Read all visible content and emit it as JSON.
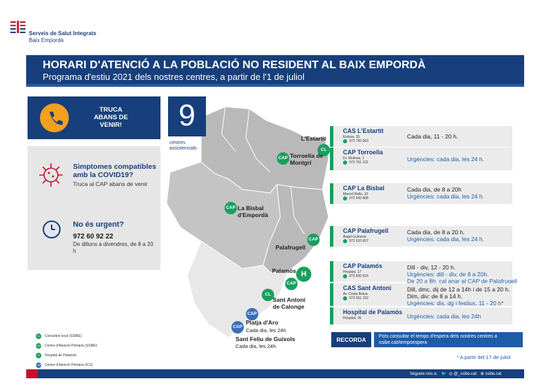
{
  "logo": {
    "line1": "Serveis de Salut Integrats",
    "line2": "Baix Empordà"
  },
  "header": {
    "title": "HORARI D'ATENCIÓ A LA POBLACIÓ NO RESIDENT AL BAIX EMPORDÀ",
    "subtitle": "Programa d'estiu 2021 dels nostres centres, a partir de l'1 de juliol"
  },
  "call": {
    "text": "TRUCA ABANS DE VENIR!"
  },
  "covid": {
    "title": "Simptomes compatibles amb la COVID19?",
    "subtitle": "Truca al CAP abans de venir"
  },
  "urgent": {
    "title": "No és urgent?",
    "phone": "972 60 92 22",
    "hours": "De dilluns a divendres, de 8 a 20 h"
  },
  "counter": {
    "number": "9",
    "label": "centres assistencials"
  },
  "map": {
    "labels": {
      "estartit": "L'Estartit",
      "torroella": "Torroella de Montgrí",
      "bisbal": "La Bisbal d'Empordà",
      "palafrugell": "Palafrugell",
      "palamos": "Palamós",
      "santantoni": "Sant Antoni de Calonge",
      "platja": "Platja d'Aro",
      "platja_hours": "Cada dia, les 24h",
      "guixols": "Sant Feliu de Guíxols",
      "guixols_hours": "Cada dia, les 24h"
    },
    "pins": {
      "cap": "CAP",
      "cl": "CL",
      "h": "H"
    }
  },
  "legend": [
    {
      "code": "CL",
      "label": "Consultori local (SSIBE)",
      "color": "#17a05d"
    },
    {
      "code": "CAP",
      "label": "Centre d'Atenció Primària (SSIBE)",
      "color": "#17a05d"
    },
    {
      "code": "H",
      "label": "Hospital de Palamós",
      "color": "#17a05d"
    },
    {
      "code": "CAP",
      "label": "Centre d'Atenció Primària (ICS)",
      "color": "#3a6fb7"
    }
  ],
  "centers": [
    {
      "name": "CAS L'Estartit",
      "address": "Eivissa, 35",
      "phone": "972 750 063",
      "hours": [
        "Cada dia, 11 - 20 h."
      ],
      "urg": []
    },
    {
      "name": "CAP Torroella",
      "address": "Dr. Molinas, 1",
      "phone": "972 761 101",
      "hours": [],
      "urg": [
        "Urgències: cada dia, les 24 h."
      ]
    },
    {
      "name": "CAP La Bisbal",
      "address": "Marcel Rallo, 10",
      "phone": "972 643 808",
      "hours": [
        "Cada dia, de 8 a 20h"
      ],
      "urg": [
        "Urgències: cada dia, les 24 h."
      ]
    },
    {
      "name": "CAP Palafrugell",
      "address": "Àngel Guimerà",
      "phone": "972 610 607",
      "hours": [
        "Cada dia, de 8 a 20 h."
      ],
      "urg": [
        "Urgències: cada dia, les 24 h."
      ]
    },
    {
      "name": "CAP Palamós",
      "address": "Hospital, 17",
      "phone": "972 600 616",
      "hours": [
        "Dill - div, 12  - 20 h."
      ],
      "urg": [
        "Urgències: dill - div, de 8 a 20h.",
        "De 20 a 8h, cal anar al CAP de Palafrugell"
      ]
    },
    {
      "name": "CAS Sant Antoni",
      "address": "Av. Costa Brava",
      "phone": "972 661 152",
      "hours": [
        "Dill, dmc, dij de 12 a 14h i de 15 a 20 h.",
        "Dim, div: de 8 a 14 h."
      ],
      "urg": [
        "Urgències: dis, dg i festius, 11 - 20 h*"
      ]
    },
    {
      "name": "Hospital de Palamós",
      "address": "Hospital, 36",
      "phone": "",
      "hours": [],
      "urg": [
        "Urgències: cada dia, les 24h"
      ]
    }
  ],
  "recorda": {
    "label": "RECORDA",
    "info": "Pots consultar el temps d'espera dels nostres centres a ssibe.cat/tempsespera"
  },
  "footnote": "* A partir del 17 de juliol",
  "footer": {
    "follow": "Segueix-nos a:",
    "handle": "@_ssibe.cat",
    "site": "ssibe.cat"
  },
  "colors": {
    "navy": "#173f7c",
    "blue": "#1d5da8",
    "green": "#17a05d",
    "orange": "#f2a01e",
    "red": "#c8102e",
    "map": "#b9b9b9"
  }
}
